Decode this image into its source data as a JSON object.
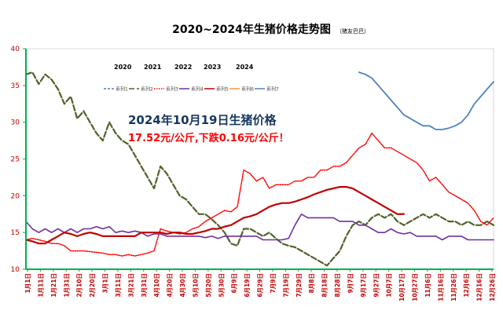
{
  "chart_data": {
    "type": "line",
    "title": "2020~2024年生猪价格走势图",
    "title_note": "（猪友巴巴）",
    "annotation_line1": "2024年10月19日生猪价格",
    "annotation_line2": "17.52元/公斤,下跌0.16元/公斤！",
    "year_labels": [
      "2020",
      "2021",
      "2022",
      "2023",
      "2024"
    ],
    "legend_entries": [
      "系列1",
      "系列2",
      "系列3",
      "系列4",
      "系列5",
      "系列6",
      "系列7"
    ],
    "legend_placement": "top-right",
    "ylim": [
      10,
      40
    ],
    "yticks": [
      10,
      15,
      20,
      25,
      30,
      35,
      40
    ],
    "xlim": [
      0,
      365
    ],
    "xtick_labels": [
      "1月1日",
      "1月11日",
      "1月21日",
      "1月31日",
      "2月10日",
      "2月20日",
      "3月1日",
      "3月11日",
      "3月21日",
      "3月31日",
      "4月10日",
      "4月20日",
      "4月30日",
      "5月10日",
      "5月20日",
      "5月30日",
      "6月9日",
      "6月19日",
      "6月29日",
      "7月9日",
      "7月19日",
      "7月29日",
      "8月8日",
      "8月18日",
      "8月28日",
      "9月7日",
      "9月17日",
      "9月27日",
      "10月7日",
      "10月17日",
      "10月27日",
      "11月6日",
      "11月16日",
      "11月26日",
      "12月6日",
      "12月16日",
      "12月26日"
    ],
    "grid": false,
    "series": [
      {
        "name": "系列1",
        "color": "#4f81bd",
        "style": "dashed",
        "x": [],
        "values": []
      },
      {
        "name": "系列2",
        "color": "#4f6228",
        "style": "long-dashed",
        "x": [
          0,
          5,
          10,
          15,
          20,
          25,
          30,
          35,
          40,
          45,
          50,
          55,
          60,
          65,
          70,
          75,
          80,
          85,
          90,
          95,
          100,
          105,
          110,
          115,
          120,
          125,
          130,
          135,
          140,
          145,
          150,
          155,
          160,
          165,
          170,
          175,
          180,
          185,
          190,
          195,
          200,
          205,
          210,
          215,
          220,
          225,
          230,
          235,
          240,
          245,
          250,
          255,
          260,
          265,
          270,
          275,
          280,
          285,
          290,
          295,
          300,
          305,
          310,
          315,
          320,
          325,
          330,
          335,
          340,
          345,
          350,
          355,
          360,
          365
        ],
        "values": [
          36.5,
          36.8,
          35.2,
          36.5,
          35.8,
          34.5,
          32.5,
          33.5,
          30.5,
          31.5,
          30.0,
          28.5,
          27.5,
          30.0,
          28.5,
          27.5,
          27.0,
          25.5,
          24.0,
          22.5,
          21.0,
          24.0,
          23.0,
          21.5,
          20.0,
          19.5,
          18.5,
          17.5,
          17.5,
          16.8,
          16.0,
          15.0,
          13.5,
          13.2,
          15.5,
          15.5,
          15.0,
          14.5,
          15.0,
          14.2,
          13.5,
          13.2,
          13.0,
          12.5,
          12.0,
          11.5,
          11.0,
          10.5,
          11.5,
          12.5,
          14.5,
          16.0,
          16.5,
          16.0,
          17.0,
          17.5,
          17.0,
          17.5,
          16.5,
          16.0,
          16.5,
          17.0,
          17.5,
          17.0,
          17.5,
          17.0,
          16.5,
          16.5,
          16.0,
          16.5,
          16.0,
          16.0,
          16.5,
          16.0
        ]
      },
      {
        "name": "系列3",
        "color": "#ff0000",
        "style": "dotted",
        "x": [
          0,
          5,
          10,
          15,
          20,
          25,
          30,
          35,
          40,
          45,
          50,
          55,
          60,
          65,
          70,
          75,
          80,
          85,
          90,
          95,
          100,
          105,
          110,
          115,
          120,
          125,
          130,
          135,
          140,
          145,
          150,
          155,
          160,
          165,
          170,
          175,
          180,
          185,
          190,
          195,
          200,
          205,
          210,
          215,
          220,
          225,
          230,
          235,
          240,
          245,
          250,
          255,
          260,
          265,
          270,
          275,
          280,
          285,
          290,
          295,
          300,
          305,
          310,
          315,
          320,
          325,
          330,
          335,
          340,
          345,
          350,
          355,
          360,
          365
        ],
        "values": [
          14.0,
          14.2,
          14.0,
          13.8,
          13.5,
          13.5,
          13.2,
          12.5,
          12.5,
          12.5,
          12.4,
          12.3,
          12.2,
          12.0,
          12.0,
          11.8,
          12.0,
          11.8,
          12.0,
          12.2,
          12.5,
          15.5,
          15.2,
          15.0,
          14.8,
          15.0,
          15.5,
          15.8,
          16.5,
          17.0,
          17.5,
          18.0,
          17.8,
          18.5,
          23.5,
          23.0,
          22.0,
          22.5,
          21.0,
          21.5,
          21.5,
          21.5,
          22.0,
          22.0,
          22.5,
          22.5,
          23.5,
          23.5,
          24.0,
          24.0,
          24.5,
          25.5,
          26.5,
          27.0,
          28.5,
          27.5,
          26.5,
          26.5,
          26.0,
          25.5,
          25.0,
          24.5,
          23.5,
          22.0,
          22.5,
          21.5,
          20.5,
          20.0,
          19.5,
          19.0,
          18.0,
          16.5,
          16.0,
          17.0
        ]
      },
      {
        "name": "系列4",
        "color": "#7030a0",
        "style": "solid",
        "x": [
          0,
          5,
          10,
          15,
          20,
          25,
          30,
          35,
          40,
          45,
          50,
          55,
          60,
          65,
          70,
          75,
          80,
          85,
          90,
          95,
          100,
          105,
          110,
          115,
          120,
          125,
          130,
          135,
          140,
          145,
          150,
          155,
          160,
          165,
          170,
          175,
          180,
          185,
          190,
          195,
          200,
          205,
          210,
          215,
          220,
          225,
          230,
          235,
          240,
          245,
          250,
          255,
          260,
          265,
          270,
          275,
          280,
          285,
          290,
          295,
          300,
          305,
          310,
          315,
          320,
          325,
          330,
          335,
          340,
          345,
          350,
          355,
          360,
          365
        ],
        "values": [
          16.5,
          15.5,
          15.0,
          15.5,
          15.0,
          15.5,
          15.0,
          15.5,
          15.0,
          15.5,
          15.5,
          15.8,
          15.5,
          15.8,
          15.0,
          15.2,
          15.0,
          15.2,
          15.0,
          14.5,
          14.8,
          14.8,
          14.5,
          14.5,
          14.5,
          14.5,
          14.5,
          14.5,
          14.3,
          14.5,
          14.2,
          14.5,
          14.5,
          14.5,
          14.5,
          14.5,
          14.5,
          14.0,
          14.0,
          14.0,
          14.0,
          14.2,
          16.0,
          17.5,
          17.0,
          17.0,
          17.0,
          17.0,
          17.0,
          16.5,
          16.5,
          16.5,
          16.0,
          16.0,
          15.5,
          15.0,
          15.0,
          15.5,
          15.0,
          14.8,
          15.0,
          14.5,
          14.5,
          14.5,
          14.5,
          14.0,
          14.5,
          14.5,
          14.5,
          14.0,
          14.0,
          14.0,
          14.0,
          14.0
        ]
      },
      {
        "name": "系列5",
        "color": "#c00000",
        "style": "solid",
        "x": [
          0,
          5,
          10,
          15,
          20,
          25,
          30,
          35,
          40,
          45,
          50,
          55,
          60,
          65,
          70,
          75,
          80,
          85,
          90,
          95,
          100,
          105,
          110,
          115,
          120,
          125,
          130,
          135,
          140,
          145,
          150,
          155,
          160,
          165,
          170,
          175,
          180,
          185,
          190,
          195,
          200,
          205,
          210,
          215,
          220,
          225,
          230,
          235,
          240,
          245,
          250,
          255,
          260,
          265,
          270,
          275,
          280,
          285,
          290,
          295
        ],
        "values": [
          14.0,
          13.8,
          13.5,
          13.5,
          14.0,
          14.5,
          15.0,
          14.8,
          14.5,
          14.8,
          15.0,
          14.8,
          14.5,
          14.5,
          14.5,
          14.5,
          14.5,
          14.5,
          15.0,
          15.0,
          15.0,
          15.0,
          14.8,
          15.0,
          15.0,
          14.8,
          14.8,
          15.0,
          15.2,
          15.5,
          15.5,
          15.8,
          16.0,
          16.5,
          17.0,
          17.2,
          17.5,
          18.0,
          18.5,
          18.8,
          19.0,
          19.0,
          19.2,
          19.5,
          19.8,
          20.2,
          20.5,
          20.8,
          21.0,
          21.2,
          21.2,
          21.0,
          20.5,
          20.0,
          19.5,
          19.0,
          18.5,
          18.0,
          17.5,
          17.52
        ]
      },
      {
        "name": "系列6",
        "color": "#f79646",
        "style": "solid",
        "x": [],
        "values": []
      },
      {
        "name": "系列7",
        "color": "#4f81bd",
        "style": "solid",
        "x": [
          260,
          265,
          270,
          275,
          280,
          285,
          290,
          295,
          300,
          305,
          310,
          315,
          320,
          325,
          330,
          335,
          340,
          345,
          350,
          355,
          360,
          365
        ],
        "values": [
          36.8,
          36.5,
          36.0,
          35.0,
          34.0,
          33.0,
          32.0,
          31.0,
          30.5,
          30.0,
          29.5,
          29.5,
          29.0,
          29.0,
          29.2,
          29.5,
          30.0,
          31.0,
          32.5,
          33.5,
          34.5,
          35.5
        ]
      }
    ]
  }
}
